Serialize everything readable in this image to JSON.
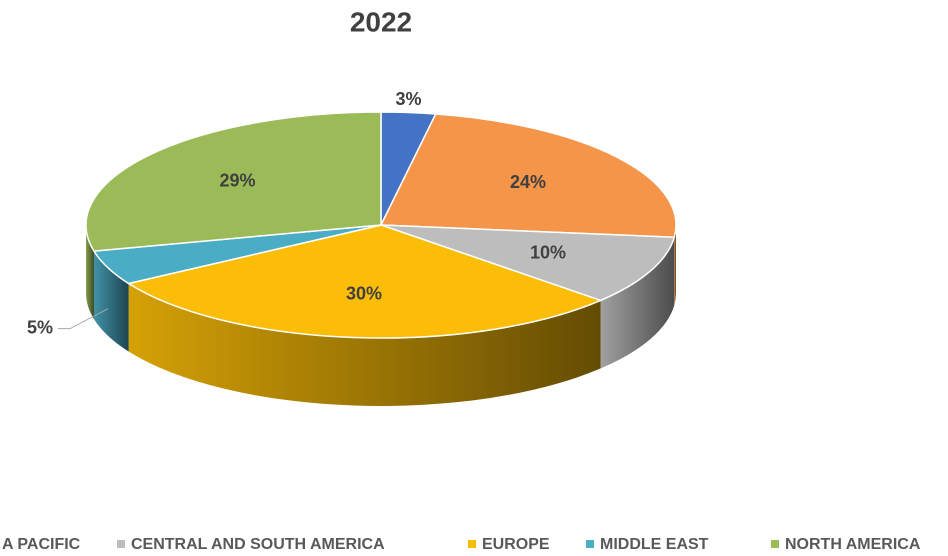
{
  "chart_data": {
    "type": "pie3d",
    "title": "2022",
    "categories": [
      null,
      "A PACIFIC",
      "CENTRAL AND SOUTH AMERICA",
      "EUROPE",
      "MIDDLE EAST",
      "NORTH AMERICA"
    ],
    "values": [
      3,
      24,
      10,
      30,
      5,
      29
    ],
    "value_labels": [
      "3%",
      "24%",
      "10%",
      "30%",
      "5%",
      "29%"
    ],
    "colors": [
      "#4472c4",
      "#f4954a",
      "#bdbdbd",
      "#fbbd07",
      "#4bacc6",
      "#9bbb59"
    ],
    "legend": "bottom"
  }
}
